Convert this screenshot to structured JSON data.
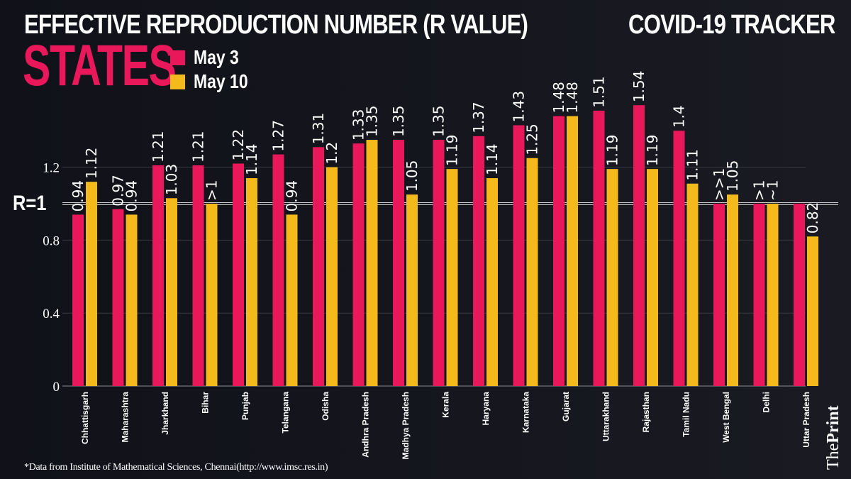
{
  "header": {
    "title": "EFFECTIVE REPRODUCTION NUMBER (R VALUE)",
    "tracker": "COVID-19 TRACKER",
    "subtitle": "STATES"
  },
  "colors": {
    "may3": "#e8185a",
    "may10": "#f4b91a",
    "background": "#13141b",
    "text": "#ffffff"
  },
  "reference_line_label": "R=1",
  "footnote": "*Data from Institute of Mathematical Sciences, Chennai(http://www.imsc.res.in)",
  "brand": {
    "prefix": "The",
    "name": "Print"
  },
  "chart_data": {
    "type": "bar",
    "title": "EFFECTIVE REPRODUCTION NUMBER (R VALUE) - STATES",
    "xlabel": "",
    "ylabel": "",
    "ylim": [
      0,
      1.6
    ],
    "yticks": [
      0,
      0.4,
      0.8,
      1.2
    ],
    "ytick_labels": [
      "0",
      "0.4",
      "0.8",
      "1.2"
    ],
    "reference_line": {
      "value": 1,
      "label": "R=1"
    },
    "grid": true,
    "legend": "top-left",
    "categories": [
      "Chhattisgarh",
      "Maharashtra",
      "Jharkhand",
      "Bihar",
      "Punjab",
      "Telangana",
      "Odisha",
      "Andhra Pradesh",
      "Madhya Pradesh",
      "Kerala",
      "Haryana",
      "Karnataka",
      "Gujarat",
      "Uttarakhand",
      "Rajasthan",
      "Tamil Nadu",
      "West Bengal",
      "Delhi",
      "Uttar Pradesh"
    ],
    "series": [
      {
        "name": "May 3",
        "color": "#e8185a",
        "values": [
          0.94,
          0.97,
          1.21,
          1.21,
          1.22,
          1.27,
          1.31,
          1.33,
          1.35,
          1.35,
          1.37,
          1.43,
          1.48,
          1.51,
          1.54,
          1.4,
          1.0,
          1.0,
          1.0
        ],
        "labels": [
          "0.94",
          "0.97",
          "1.21",
          "1.21",
          "1.22",
          "1.27",
          "1.31",
          "1.33",
          "1.35",
          "1.35",
          "1.37",
          "1.43",
          "1.48",
          "1.51",
          "1.54",
          "1.4",
          ">>1",
          ">1",
          ""
        ]
      },
      {
        "name": "May 10",
        "color": "#f4b91a",
        "values": [
          1.12,
          0.94,
          1.03,
          1.0,
          1.14,
          0.94,
          1.2,
          1.35,
          1.05,
          1.19,
          1.14,
          1.25,
          1.48,
          1.19,
          1.19,
          1.11,
          1.05,
          1.0,
          0.82
        ],
        "labels": [
          "1.12",
          "0.94",
          "1.03",
          ">1",
          "1.14",
          "0.94",
          "1.2",
          "1.35",
          "1.05",
          "1.19",
          "1.14",
          "1.25",
          "1.48",
          "1.19",
          "1.19",
          "1.11",
          "1.05",
          "~1",
          "0.82"
        ]
      }
    ]
  }
}
